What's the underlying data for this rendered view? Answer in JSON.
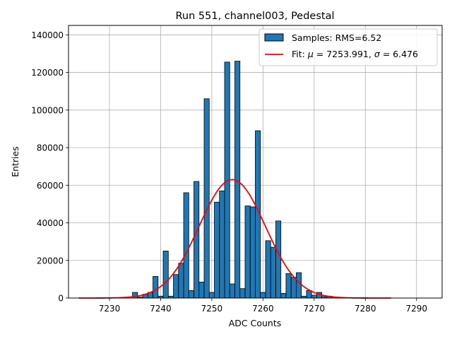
{
  "chart_data": {
    "type": "bar",
    "title": "Run 551, channel003, Pedestal",
    "xlabel": "ADC Counts",
    "ylabel": "Entries",
    "xlim": [
      7222,
      7295
    ],
    "ylim": [
      0,
      145000
    ],
    "xticks": [
      7230,
      7240,
      7250,
      7260,
      7270,
      7280,
      7290
    ],
    "yticks": [
      0,
      20000,
      40000,
      60000,
      80000,
      100000,
      120000,
      140000
    ],
    "grid": true,
    "legend_position": "top-right",
    "bin_width": 1,
    "bin_color": "#1f77b4",
    "fit_color": "#ff0000",
    "histogram": {
      "name": "Samples: RMS=6.52",
      "bins": [
        7235,
        7236,
        7237,
        7238,
        7239,
        7240,
        7241,
        7242,
        7243,
        7244,
        7245,
        7246,
        7247,
        7248,
        7249,
        7250,
        7251,
        7252,
        7253,
        7254,
        7255,
        7256,
        7257,
        7258,
        7259,
        7260,
        7261,
        7262,
        7263,
        7264,
        7265,
        7266,
        7267,
        7268,
        7269,
        7270,
        7271,
        7272,
        7273,
        7274
      ],
      "counts": [
        3000,
        500,
        2000,
        3000,
        11500,
        1000,
        25000,
        1000,
        12500,
        18500,
        56000,
        4000,
        62000,
        8500,
        106000,
        3000,
        51000,
        57000,
        125500,
        7500,
        126000,
        5000,
        49000,
        48500,
        89000,
        3000,
        30500,
        27000,
        41000,
        2500,
        13000,
        11000,
        13500,
        1000,
        4000,
        1500,
        3000,
        800,
        1000,
        300
      ]
    },
    "fit": {
      "name_prefix": "Fit: ",
      "mu_symbol": "μ",
      "mu_text": " = 7253.991, ",
      "sigma_symbol": "σ",
      "sigma_text": " = 6.476",
      "mu": 7253.991,
      "sigma": 6.476,
      "amplitude": 63000,
      "x_range": [
        7224,
        7285
      ]
    }
  }
}
